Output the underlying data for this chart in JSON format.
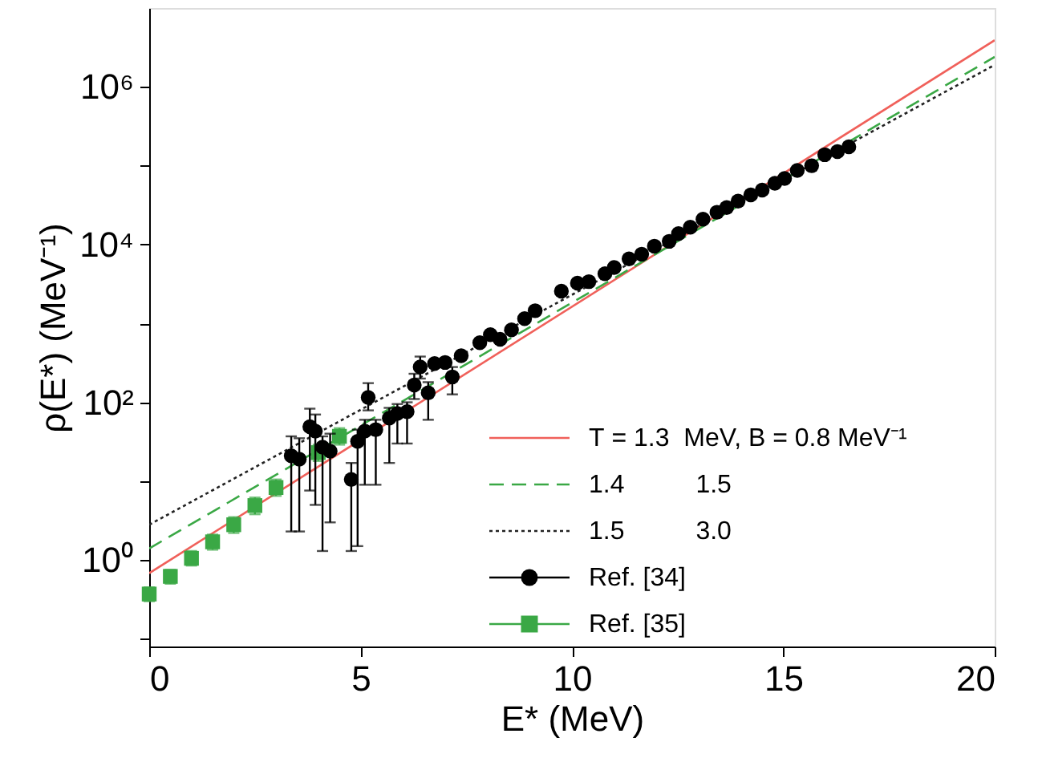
{
  "chart_data": {
    "type": "line",
    "xlabel": "E* (MeV)",
    "ylabel": "ρ(E*)  (MeV⁻¹)",
    "xlim": [
      0,
      20
    ],
    "xticks": [
      0,
      5,
      10,
      15,
      20
    ],
    "ylim": [
      0.08,
      10000000
    ],
    "yticks": [
      {
        "value": 0.1,
        "label": null
      },
      {
        "value": 1,
        "label": "10⁰"
      },
      {
        "value": 10,
        "label": null
      },
      {
        "value": 100,
        "label": "10²"
      },
      {
        "value": 1000,
        "label": null
      },
      {
        "value": 10000,
        "label": "10⁴"
      },
      {
        "value": 100000,
        "label": null
      },
      {
        "value": 1000000,
        "label": "10⁶"
      }
    ],
    "log": "y",
    "grid": false,
    "legend": "bottom right",
    "series": [
      {
        "name": "T = 1.3  MeV, B = 0.8 MeV⁻¹",
        "line_style": "solid",
        "color": "#f0605a",
        "x": [
          0,
          20
        ],
        "values": [
          0.68,
          3900000
        ]
      },
      {
        "name": "1.4          1.5",
        "line_style": "dashed",
        "color": "#3aa845",
        "x": [
          0,
          20
        ],
        "values": [
          1.4,
          2400000
        ]
      },
      {
        "name": "1.5          3.0",
        "line_style": "dotted",
        "color": "#222222",
        "x": [
          0,
          20
        ],
        "values": [
          2.8,
          1900000
        ]
      },
      {
        "name": "Ref. [34]",
        "type": "scatter",
        "marker": "circle",
        "color": "#000000",
        "x": [
          3.36,
          3.55,
          3.8,
          3.93,
          4.1,
          4.28,
          4.78,
          4.93,
          5.1,
          5.18,
          5.36,
          5.68,
          5.87,
          6.1,
          6.27,
          6.41,
          6.6,
          6.75,
          7.0,
          7.17,
          7.38,
          7.82,
          8.07,
          8.3,
          8.57,
          8.88,
          9.13,
          9.75,
          10.13,
          10.4,
          10.78,
          11.0,
          11.35,
          11.65,
          11.95,
          12.3,
          12.52,
          12.8,
          13.1,
          13.43,
          13.66,
          13.93,
          14.23,
          14.5,
          14.8,
          15.03,
          15.33,
          15.67,
          15.98,
          16.28,
          16.55
        ],
        "values": [
          21,
          19,
          49,
          43,
          27,
          24,
          10.5,
          32,
          43,
          115,
          45,
          63,
          72,
          76,
          166,
          280,
          132,
          310,
          320,
          210,
          390,
          570,
          720,
          630,
          830,
          1150,
          1450,
          2570,
          3240,
          3390,
          4270,
          5130,
          6600,
          7560,
          9550,
          11000,
          13800,
          16600,
          21000,
          25700,
          29500,
          35500,
          42700,
          49000,
          60000,
          69000,
          87000,
          100000,
          138000,
          151000,
          174000
        ],
        "errors": [
          [
            2.3,
            37
          ],
          [
            2.3,
            35
          ],
          [
            7.6,
            83
          ],
          [
            5,
            70
          ],
          [
            1.3,
            37
          ],
          [
            3,
            40
          ],
          [
            1.3,
            17
          ],
          [
            1.5,
            45
          ],
          [
            9,
            60
          ],
          [
            79,
            175
          ],
          [
            9,
            60
          ],
          [
            17,
            85
          ],
          [
            30,
            95
          ],
          [
            30,
            100
          ],
          [
            110,
            230
          ],
          [
            200,
            380
          ],
          [
            60,
            180
          ],
          null,
          null,
          [
            126,
            280
          ],
          null,
          null,
          null,
          null,
          null,
          null,
          null,
          null,
          null,
          null,
          null,
          null,
          null,
          null,
          null,
          null,
          null,
          null,
          null,
          null,
          null,
          null,
          null,
          null,
          null,
          null,
          null,
          null,
          null,
          null,
          null
        ]
      },
      {
        "name": "Ref. [35]",
        "type": "scatter",
        "marker": "square",
        "color": "#3aa845",
        "x": [
          0,
          0.5,
          1,
          1.5,
          2,
          2.5,
          3,
          4,
          4.5
        ],
        "values": [
          0.37,
          0.62,
          1.05,
          1.7,
          2.8,
          4.9,
          8.3,
          23,
          37
        ],
        "errors": [
          [
            0.3,
            0.45
          ],
          [
            0.5,
            0.75
          ],
          [
            0.85,
            1.3
          ],
          [
            1.35,
            2.1
          ],
          [
            2.2,
            3.5
          ],
          [
            3.8,
            6.2
          ],
          [
            6.5,
            10.5
          ],
          [
            18,
            29
          ],
          [
            29,
            47
          ]
        ]
      }
    ]
  }
}
